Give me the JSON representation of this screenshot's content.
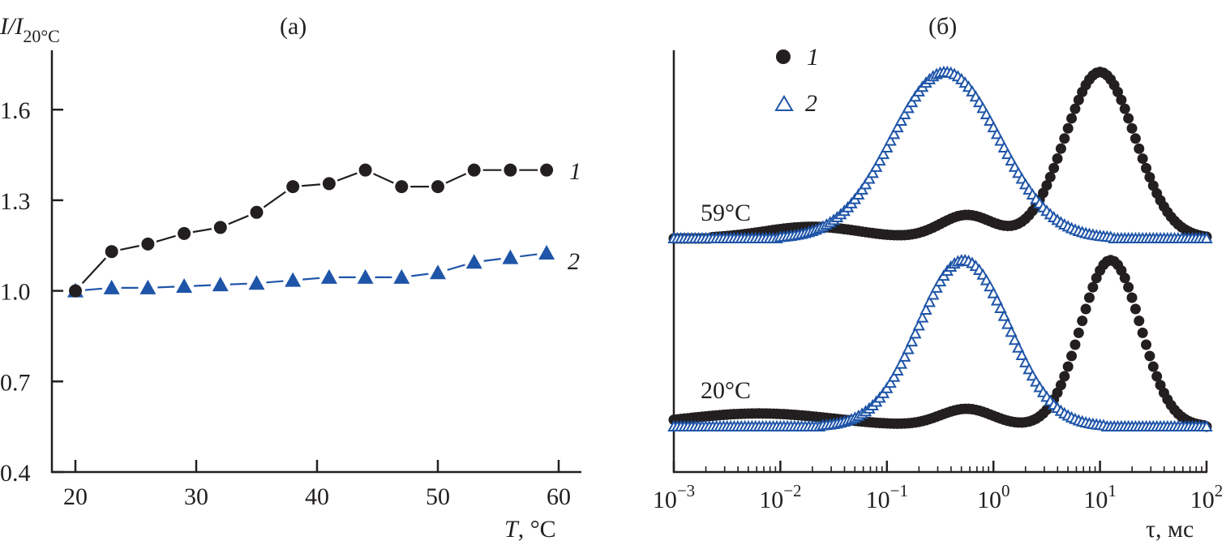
{
  "colors": {
    "series1": "#231f20",
    "series2": "#1f55a8",
    "axis": "#231f20"
  },
  "chart_data": [
    {
      "panel": "(a)",
      "type": "line",
      "title": "(a)",
      "xlabel_var": "T",
      "xlabel_unit": ", °C",
      "ylabel_main": "I/I",
      "ylabel_sub": "20°C",
      "xlim": [
        18,
        62
      ],
      "ylim": [
        0.4,
        1.8
      ],
      "xticks": [
        20,
        30,
        40,
        50,
        60
      ],
      "xtick_labels": [
        "20",
        "30",
        "40",
        "50",
        "60"
      ],
      "yticks": [
        0.4,
        0.7,
        1.0,
        1.3,
        1.6
      ],
      "ytick_labels": [
        "0.4",
        "0.7",
        "1.0",
        "1.3",
        "1.6"
      ],
      "grid": false,
      "series": [
        {
          "name": "1",
          "marker": "filled-circle",
          "x": [
            20,
            23,
            26,
            29,
            32,
            35,
            38,
            41,
            44,
            47,
            50,
            53,
            56,
            59
          ],
          "y": [
            1.0,
            1.13,
            1.155,
            1.19,
            1.21,
            1.26,
            1.345,
            1.355,
            1.4,
            1.345,
            1.345,
            1.4,
            1.4,
            1.4
          ]
        },
        {
          "name": "2",
          "marker": "filled-triangle",
          "x": [
            20,
            23,
            26,
            29,
            32,
            35,
            38,
            41,
            44,
            47,
            50,
            53,
            56,
            59
          ],
          "y": [
            1.0,
            1.01,
            1.01,
            1.015,
            1.02,
            1.025,
            1.035,
            1.045,
            1.045,
            1.045,
            1.06,
            1.095,
            1.11,
            1.125
          ]
        }
      ],
      "series_labels": [
        "1",
        "2"
      ]
    },
    {
      "panel": "(б)",
      "type": "scatter",
      "title": "(б)",
      "xlabel": "τ, мс",
      "xscale": "log",
      "xlim": [
        0.001,
        100
      ],
      "xtick_labels": [
        {
          "base": "10",
          "exp": "−3"
        },
        {
          "base": "10",
          "exp": "−2"
        },
        {
          "base": "10",
          "exp": "−1"
        },
        {
          "base": "10",
          "exp": "0"
        },
        {
          "base": "10",
          "exp": "1"
        },
        {
          "base": "10",
          "exp": "2"
        }
      ],
      "ylabel": "",
      "yticks_shown": false,
      "grid": false,
      "legend": {
        "placement": "top-left",
        "entries": [
          {
            "label": "1",
            "marker": "filled-circle"
          },
          {
            "label": "2",
            "marker": "open-triangle"
          }
        ]
      },
      "curve_labels": [
        "59°C",
        "20°C"
      ],
      "series": [
        {
          "name": "1",
          "temperature": "59°C",
          "marker": "filled-circle",
          "peaks": [
            {
              "center_log10": -1.7,
              "width_log10": 0.45,
              "height": 0.04
            },
            {
              "center_log10": -0.25,
              "width_log10": 0.25,
              "height": 0.08
            },
            {
              "center_log10": 1.0,
              "width_log10": 0.33,
              "height": 0.57
            }
          ]
        },
        {
          "name": "2",
          "temperature": "59°C",
          "marker": "open-triangle",
          "peaks": [
            {
              "center_log10": -0.45,
              "width_log10": 0.5,
              "height": 0.57
            }
          ]
        },
        {
          "name": "1",
          "temperature": "20°C",
          "marker": "filled-circle",
          "peaks": [
            {
              "center_log10": -2.2,
              "width_log10": 0.7,
              "height": 0.045
            },
            {
              "center_log10": -0.25,
              "width_log10": 0.25,
              "height": 0.06
            },
            {
              "center_log10": 1.1,
              "width_log10": 0.28,
              "height": 0.57
            }
          ]
        },
        {
          "name": "2",
          "temperature": "20°C",
          "marker": "open-triangle",
          "peaks": [
            {
              "center_log10": -0.28,
              "width_log10": 0.42,
              "height": 0.57
            }
          ]
        }
      ]
    }
  ]
}
